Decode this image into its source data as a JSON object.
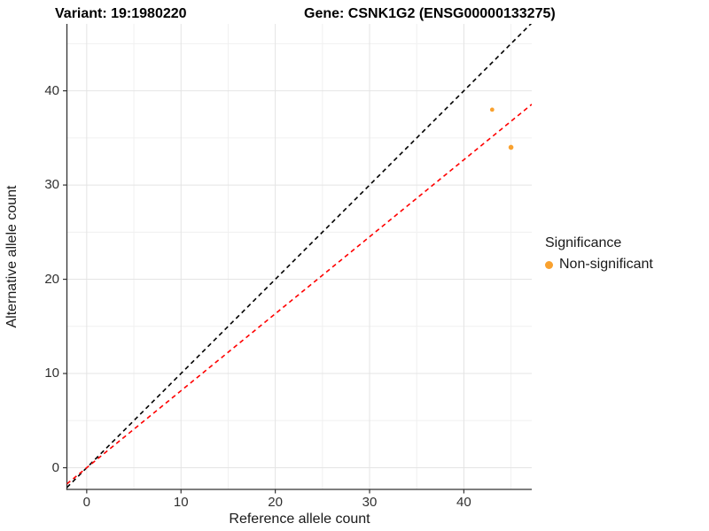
{
  "header": {
    "variant_title": "Variant: 19:1980220",
    "gene_title": "Gene: CSNK1G2 (ENSG00000133275)"
  },
  "legend": {
    "title": "Significance",
    "items": [
      {
        "label": "Non-significant",
        "color": "#F9A12F"
      }
    ]
  },
  "colors": {
    "identity_line": "#000000",
    "fit_line": "#FF0000",
    "axis_line": "#333333",
    "major_grid": "#E4E4E4",
    "minor_grid": "#F0F0F0",
    "point": "#F9A12F"
  },
  "chart_data": {
    "type": "scatter",
    "title_left": "Variant: 19:1980220",
    "title_right": "Gene: CSNK1G2 (ENSG00000133275)",
    "xlabel": "Reference allele count",
    "ylabel": "Alternative allele count",
    "xlim": [
      -2.1,
      47.2
    ],
    "ylim": [
      -2.3,
      47.1
    ],
    "x_ticks": [
      0,
      10,
      20,
      30,
      40
    ],
    "y_ticks": [
      0,
      10,
      20,
      30,
      40
    ],
    "x_minor_ticks": [
      5,
      15,
      25,
      35,
      45
    ],
    "y_minor_ticks": [
      5,
      15,
      25,
      35,
      45
    ],
    "grid": true,
    "legend_position": "right",
    "series": [
      {
        "name": "Non-significant",
        "points": [
          {
            "x": 43,
            "y": 38,
            "r": 2.4
          },
          {
            "x": 45,
            "y": 34,
            "r": 2.8
          }
        ]
      }
    ],
    "lines": [
      {
        "name": "identity",
        "slope": 1,
        "intercept": 0,
        "color": "#000000",
        "dashed": true
      },
      {
        "name": "fit",
        "slope": 0.817,
        "intercept": 0,
        "color": "#FF0000",
        "dashed": true
      }
    ]
  }
}
